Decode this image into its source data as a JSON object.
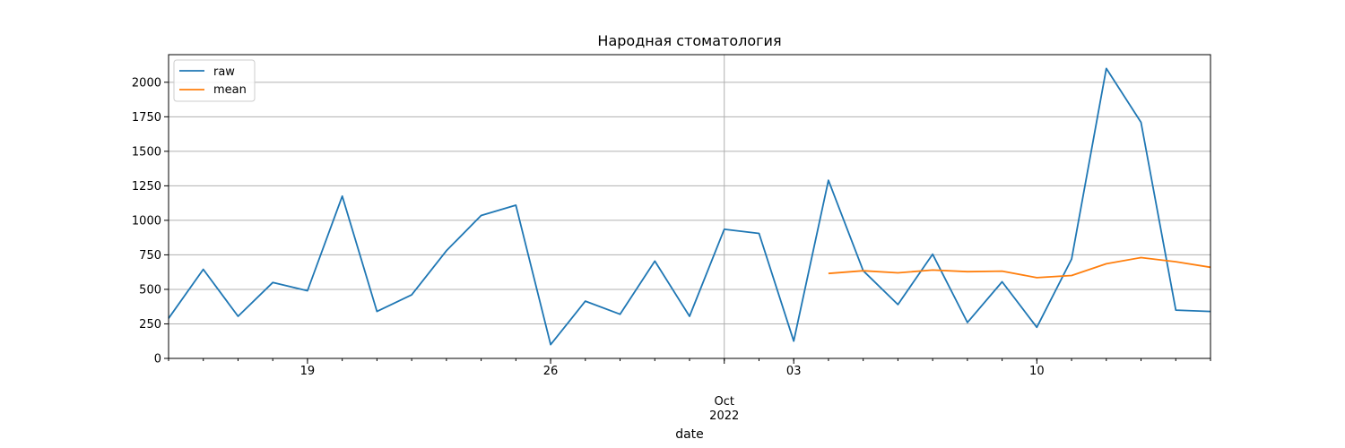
{
  "chart_data": {
    "type": "line",
    "title": "Народная стоматология",
    "xlabel": "date",
    "ylabel": "",
    "x": [
      "2022-09-15",
      "2022-09-16",
      "2022-09-17",
      "2022-09-18",
      "2022-09-19",
      "2022-09-20",
      "2022-09-21",
      "2022-09-22",
      "2022-09-23",
      "2022-09-24",
      "2022-09-25",
      "2022-09-26",
      "2022-09-27",
      "2022-09-28",
      "2022-09-29",
      "2022-09-30",
      "2022-10-01",
      "2022-10-02",
      "2022-10-03",
      "2022-10-04",
      "2022-10-05",
      "2022-10-06",
      "2022-10-07",
      "2022-10-08",
      "2022-10-09",
      "2022-10-10",
      "2022-10-11",
      "2022-10-12",
      "2022-10-13",
      "2022-10-14",
      "2022-10-15"
    ],
    "series": [
      {
        "name": "raw",
        "color": "#1f77b4",
        "values": [
          290,
          645,
          305,
          550,
          490,
          1175,
          340,
          460,
          780,
          1035,
          1110,
          100,
          415,
          320,
          705,
          305,
          935,
          905,
          125,
          1290,
          635,
          390,
          755,
          260,
          555,
          225,
          720,
          2100,
          1710,
          350,
          340
        ]
      },
      {
        "name": "mean",
        "color": "#ff7f0e",
        "values": [
          null,
          null,
          null,
          null,
          null,
          null,
          null,
          null,
          null,
          null,
          null,
          null,
          null,
          null,
          null,
          null,
          null,
          null,
          null,
          615,
          635,
          620,
          640,
          628,
          632,
          585,
          600,
          685,
          730,
          700,
          660
        ]
      }
    ],
    "ylim": [
      0,
      2200
    ],
    "yticks": [
      0,
      250,
      500,
      750,
      1000,
      1250,
      1500,
      1750,
      2000
    ],
    "ytick_labels": [
      "0",
      "250",
      "500",
      "750",
      "1000",
      "1250",
      "1500",
      "1750",
      "2000"
    ],
    "xticks_major": [
      {
        "date": "2022-09-19",
        "label": "19"
      },
      {
        "date": "2022-09-26",
        "label": "26"
      },
      {
        "date": "2022-10-03",
        "label": "03"
      },
      {
        "date": "2022-10-10",
        "label": "10"
      }
    ],
    "xtick_month": {
      "date": "2022-10-01",
      "label": "Oct\n2022",
      "label_lines": [
        "Oct",
        "2022"
      ]
    },
    "grid": true,
    "legend_position": "top-left"
  }
}
